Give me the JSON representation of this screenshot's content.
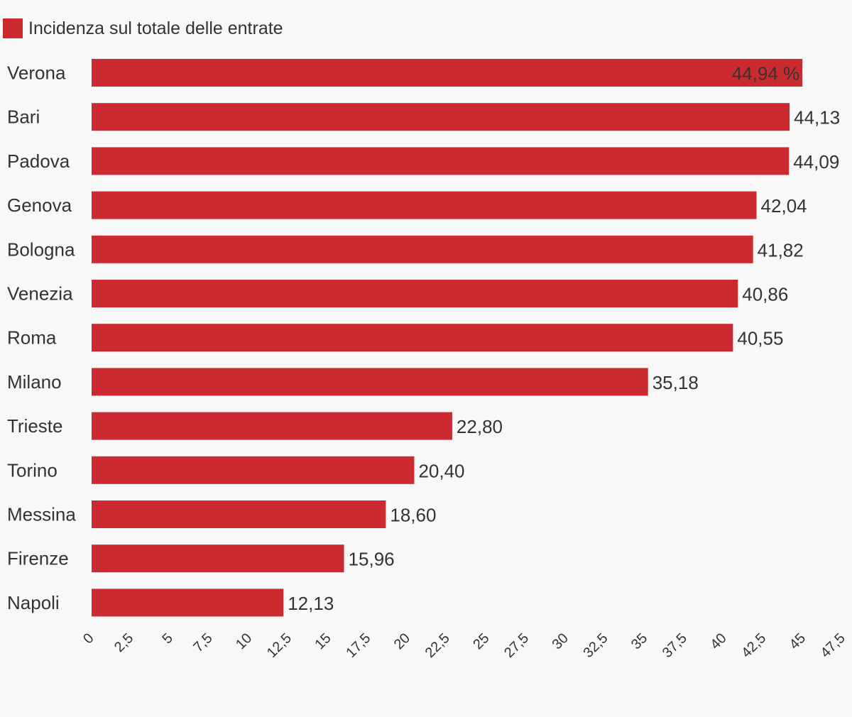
{
  "chart_data": {
    "type": "bar",
    "orientation": "horizontal",
    "legend": {
      "label": "Incidenza sul totale delle entrate",
      "position": "top-left"
    },
    "series": [
      {
        "name": "Incidenza sul totale delle entrate",
        "color": "#cc2a31",
        "values": [
          44.94,
          44.13,
          44.09,
          42.04,
          41.82,
          40.86,
          40.55,
          35.18,
          22.8,
          20.4,
          18.6,
          15.96,
          12.13
        ]
      }
    ],
    "categories": [
      "Verona",
      "Bari",
      "Padova",
      "Genova",
      "Bologna",
      "Venezia",
      "Roma",
      "Milano",
      "Trieste",
      "Torino",
      "Messina",
      "Firenze",
      "Napoli"
    ],
    "value_labels": [
      "44,94 %",
      "44,13",
      "44,09",
      "42,04",
      "41,82",
      "40,86",
      "40,55",
      "35,18",
      "22,80",
      "20,40",
      "18,60",
      "15,96",
      "12,13"
    ],
    "x_ticks": [
      "0",
      "2,5",
      "5",
      "7,5",
      "10",
      "12,5",
      "15",
      "17,5",
      "20",
      "22,5",
      "25",
      "27,5",
      "30",
      "32,5",
      "35",
      "37,5",
      "40",
      "42,5",
      "45",
      "47,5"
    ],
    "xlim": [
      0,
      47.5
    ],
    "grid": false,
    "xlabel": "",
    "ylabel": ""
  }
}
